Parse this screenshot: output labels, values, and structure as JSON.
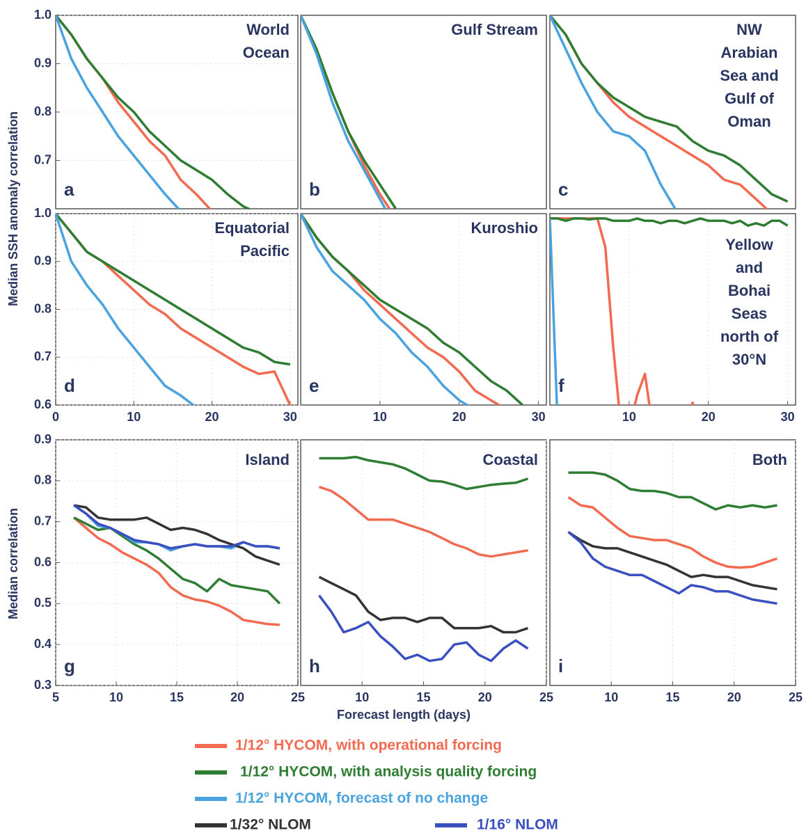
{
  "chart_data": [
    {
      "type": "line",
      "title": [
        "World",
        "Ocean"
      ],
      "label": "a",
      "ylabel": "Median SSH anomaly correlation",
      "x": [
        0,
        2,
        4,
        6,
        8,
        10,
        12,
        14,
        16,
        18,
        20,
        22,
        24,
        26,
        28,
        30
      ],
      "xlim": [
        0,
        31
      ],
      "ylim": [
        0.6,
        1.0
      ],
      "yticks": [
        {
          "value": 1,
          "label": "1.0"
        },
        0.9,
        0.8,
        0.7
      ],
      "series": [
        {
          "name": "1/12° HYCOM, with operational forcing",
          "color": "#f26a4f",
          "values": [
            1.0,
            0.96,
            0.91,
            0.87,
            0.82,
            0.78,
            0.74,
            0.71,
            0.66,
            0.63,
            0.595,
            null,
            null,
            null,
            null,
            null
          ]
        },
        {
          "name": "1/12° HYCOM, with analysis quality forcing",
          "color": "#2e7d32",
          "values": [
            1.0,
            0.96,
            0.91,
            0.87,
            0.83,
            0.8,
            0.76,
            0.73,
            0.7,
            0.68,
            0.66,
            0.63,
            0.605,
            0.59,
            null,
            null
          ]
        },
        {
          "name": "1/12° HYCOM, forecast of no change",
          "color": "#4aa3df",
          "values": [
            1.0,
            0.91,
            0.85,
            0.8,
            0.75,
            0.71,
            0.67,
            0.63,
            0.595,
            null,
            null,
            null,
            null,
            null,
            null,
            null
          ]
        }
      ]
    },
    {
      "type": "line",
      "title": [
        "Gulf Stream"
      ],
      "label": "b",
      "x": [
        0,
        2,
        4,
        6,
        8,
        10,
        12,
        14,
        16,
        18,
        20,
        22,
        24,
        26,
        28,
        30
      ],
      "xlim": [
        0,
        31
      ],
      "ylim": [
        0.6,
        1.0
      ],
      "series": [
        {
          "name": "1/12° HYCOM, with operational forcing",
          "color": "#f26a4f",
          "values": [
            1.0,
            0.93,
            0.84,
            0.76,
            0.69,
            0.63,
            0.58,
            null,
            null,
            null,
            null,
            null,
            null,
            null,
            null,
            null
          ]
        },
        {
          "name": "1/12° HYCOM, with analysis quality forcing",
          "color": "#2e7d32",
          "values": [
            1.0,
            0.93,
            0.84,
            0.76,
            0.7,
            0.65,
            0.6,
            null,
            null,
            null,
            null,
            null,
            null,
            null,
            null,
            null
          ]
        },
        {
          "name": "1/12° HYCOM, forecast of no change",
          "color": "#4aa3df",
          "values": [
            1.0,
            0.92,
            0.82,
            0.74,
            0.68,
            0.62,
            0.56,
            null,
            null,
            null,
            null,
            null,
            null,
            null,
            null,
            null
          ]
        }
      ]
    },
    {
      "type": "line",
      "title": [
        "NW",
        "Arabian",
        "Sea and",
        "Gulf of",
        "Oman"
      ],
      "label": "c",
      "x": [
        0,
        2,
        4,
        6,
        8,
        10,
        12,
        14,
        16,
        18,
        20,
        22,
        24,
        26,
        28,
        30
      ],
      "xlim": [
        0,
        31
      ],
      "ylim": [
        0.6,
        1.0
      ],
      "series": [
        {
          "name": "1/12° HYCOM, with operational forcing",
          "color": "#f26a4f",
          "values": [
            1.0,
            0.96,
            0.9,
            0.86,
            0.82,
            0.79,
            0.77,
            0.75,
            0.73,
            0.71,
            0.69,
            0.66,
            0.65,
            0.62,
            0.59,
            null
          ]
        },
        {
          "name": "1/12° HYCOM, with analysis quality forcing",
          "color": "#2e7d32",
          "values": [
            1.0,
            0.96,
            0.9,
            0.86,
            0.83,
            0.81,
            0.79,
            0.78,
            0.77,
            0.74,
            0.72,
            0.71,
            0.69,
            0.66,
            0.63,
            0.615
          ]
        },
        {
          "name": "1/12° HYCOM, forecast of no change",
          "color": "#4aa3df",
          "values": [
            1.0,
            0.93,
            0.86,
            0.8,
            0.76,
            0.75,
            0.72,
            0.65,
            0.595,
            null,
            null,
            null,
            null,
            null,
            null,
            null
          ]
        }
      ]
    },
    {
      "type": "line",
      "title": [
        "Equatorial",
        "Pacific"
      ],
      "label": "d",
      "x": [
        0,
        2,
        4,
        6,
        8,
        10,
        12,
        14,
        16,
        18,
        20,
        22,
        24,
        26,
        28,
        30
      ],
      "xlim": [
        0,
        31
      ],
      "ylim": [
        0.6,
        1.0
      ],
      "xticks": [
        0,
        10,
        20,
        30
      ],
      "yticks": [
        {
          "value": 1,
          "label": "1.0"
        },
        0.9,
        0.8,
        0.7,
        0.6
      ],
      "series": [
        {
          "name": "1/12° HYCOM, with operational forcing",
          "color": "#f26a4f",
          "values": [
            1.0,
            0.96,
            0.92,
            0.9,
            0.87,
            0.84,
            0.81,
            0.79,
            0.76,
            0.74,
            0.72,
            0.7,
            0.68,
            0.665,
            0.67,
            0.6
          ]
        },
        {
          "name": "1/12° HYCOM, with analysis quality forcing",
          "color": "#2e7d32",
          "values": [
            1.0,
            0.96,
            0.92,
            0.9,
            0.88,
            0.86,
            0.84,
            0.82,
            0.8,
            0.78,
            0.76,
            0.74,
            0.72,
            0.71,
            0.69,
            0.685
          ]
        },
        {
          "name": "1/12° HYCOM, forecast of no change",
          "color": "#4aa3df",
          "values": [
            1.0,
            0.9,
            0.85,
            0.81,
            0.76,
            0.72,
            0.68,
            0.64,
            0.62,
            0.595,
            null,
            null,
            null,
            null,
            null,
            null
          ]
        }
      ]
    },
    {
      "type": "line",
      "title": [
        "Kuroshio"
      ],
      "label": "e",
      "x": [
        0,
        2,
        4,
        6,
        8,
        10,
        12,
        14,
        16,
        18,
        20,
        22,
        24,
        26,
        28,
        30
      ],
      "xlim": [
        0,
        31
      ],
      "ylim": [
        0.6,
        1.0
      ],
      "xticks": [
        10,
        20,
        30
      ],
      "series": [
        {
          "name": "1/12° HYCOM, with operational forcing",
          "color": "#f26a4f",
          "values": [
            1.0,
            0.95,
            0.91,
            0.88,
            0.84,
            0.81,
            0.78,
            0.75,
            0.72,
            0.7,
            0.67,
            0.63,
            0.61,
            0.59,
            null,
            null
          ]
        },
        {
          "name": "1/12° HYCOM, with analysis quality forcing",
          "color": "#2e7d32",
          "values": [
            1.0,
            0.95,
            0.91,
            0.88,
            0.85,
            0.82,
            0.8,
            0.78,
            0.76,
            0.73,
            0.71,
            0.68,
            0.65,
            0.63,
            0.6,
            null
          ]
        },
        {
          "name": "1/12° HYCOM, forecast of no change",
          "color": "#4aa3df",
          "values": [
            1.0,
            0.93,
            0.88,
            0.85,
            0.82,
            0.78,
            0.75,
            0.71,
            0.68,
            0.64,
            0.61,
            0.59,
            null,
            null,
            null,
            null
          ]
        }
      ]
    },
    {
      "type": "line",
      "title": [
        "Yellow",
        "and",
        "Bohai",
        "Seas",
        "north of",
        "30°N"
      ],
      "label": "f",
      "x": [
        0,
        1,
        2,
        3,
        4,
        5,
        6,
        7,
        8,
        9,
        10,
        11,
        12,
        13,
        14,
        15,
        16,
        17,
        18,
        19,
        20,
        21,
        22,
        23,
        24,
        25,
        26,
        27,
        28,
        29,
        30
      ],
      "xlim": [
        0,
        31
      ],
      "ylim": [
        0.6,
        1.0
      ],
      "xticks": [
        10,
        20,
        30
      ],
      "series": [
        {
          "name": "1/12° HYCOM, with operational forcing",
          "color": "#f26a4f",
          "values": [
            0.99,
            0.99,
            0.99,
            0.99,
            0.99,
            0.99,
            0.99,
            0.93,
            0.72,
            0.55,
            0.55,
            0.62,
            0.665,
            0.55,
            null,
            null,
            null,
            0.55,
            0.605,
            0.55,
            null,
            null,
            null,
            null,
            null,
            null,
            null,
            null,
            null,
            null,
            null
          ]
        },
        {
          "name": "1/12° HYCOM, with analysis quality forcing",
          "color": "#2e7d32",
          "values": [
            0.99,
            0.99,
            0.985,
            0.99,
            0.99,
            0.988,
            0.99,
            0.99,
            0.985,
            0.985,
            0.985,
            0.99,
            0.985,
            0.985,
            0.98,
            0.985,
            0.985,
            0.98,
            0.985,
            0.99,
            0.985,
            0.985,
            0.985,
            0.98,
            0.985,
            0.975,
            0.98,
            0.975,
            0.985,
            0.985,
            0.975
          ]
        },
        {
          "name": "1/12° HYCOM, forecast of no change",
          "color": "#4aa3df",
          "values": [
            0.99,
            0.55,
            null,
            null,
            null,
            null,
            null,
            null,
            null,
            null,
            null,
            null,
            null,
            null,
            null,
            null,
            null,
            null,
            null,
            null,
            null,
            null,
            null,
            null,
            null,
            null,
            null,
            null,
            null,
            null,
            null
          ]
        }
      ]
    },
    {
      "type": "line",
      "title": [
        "Island"
      ],
      "label": "g",
      "ylabel": "Median correlation",
      "x": [
        6.5,
        7.5,
        8.5,
        9.5,
        10.5,
        11.5,
        12.5,
        13.5,
        14.5,
        15.5,
        16.5,
        17.5,
        18.5,
        19.5,
        20.5,
        21.5,
        22.5,
        23.5
      ],
      "xlim": [
        5,
        25
      ],
      "ylim": [
        0.3,
        0.9
      ],
      "xticks": [
        5,
        10,
        15,
        20,
        25
      ],
      "yticks": [
        0.9,
        0.8,
        0.7,
        0.6,
        0.5,
        0.4,
        0.3
      ],
      "series": [
        {
          "name": "1/12° HYCOM, with operational forcing",
          "color": "#f26a4f",
          "values": [
            0.71,
            0.685,
            0.66,
            0.645,
            0.625,
            0.61,
            0.595,
            0.575,
            0.54,
            0.52,
            0.51,
            0.505,
            0.495,
            0.48,
            0.46,
            0.455,
            0.45,
            0.448
          ]
        },
        {
          "name": "1/12° HYCOM, with analysis quality forcing",
          "color": "#2e7d32",
          "values": [
            0.71,
            0.695,
            0.68,
            0.685,
            0.665,
            0.645,
            0.63,
            0.61,
            0.585,
            0.56,
            0.55,
            0.53,
            0.56,
            0.545,
            0.54,
            0.535,
            0.53,
            0.5
          ]
        },
        {
          "name": "1/12° HYCOM, forecast of no change",
          "color": "#4aa3df",
          "values": [
            0.74,
            0.72,
            0.69,
            0.685,
            0.67,
            0.65,
            0.65,
            0.645,
            0.63,
            0.64,
            0.645,
            0.64,
            0.64,
            0.635,
            0.65,
            0.64,
            0.64,
            0.635
          ]
        },
        {
          "name": "1/32° NLOM",
          "color": "#333333",
          "values": [
            0.74,
            0.735,
            0.71,
            0.705,
            0.705,
            0.705,
            0.71,
            0.695,
            0.68,
            0.685,
            0.68,
            0.67,
            0.655,
            0.645,
            0.635,
            0.615,
            0.605,
            0.595
          ]
        },
        {
          "name": "1/16° NLOM",
          "color": "#3a4fc0",
          "values": [
            0.74,
            0.72,
            0.695,
            0.685,
            0.67,
            0.655,
            0.65,
            0.645,
            0.635,
            0.64,
            0.645,
            0.64,
            0.64,
            0.64,
            0.65,
            0.64,
            0.64,
            0.635
          ]
        }
      ]
    },
    {
      "type": "line",
      "title": [
        "Coastal"
      ],
      "label": "h",
      "xlabel": "Forecast length (days)",
      "x": [
        6.5,
        7.5,
        8.5,
        9.5,
        10.5,
        11.5,
        12.5,
        13.5,
        14.5,
        15.5,
        16.5,
        17.5,
        18.5,
        19.5,
        20.5,
        21.5,
        22.5,
        23.5
      ],
      "xlim": [
        5,
        25
      ],
      "ylim": [
        0.3,
        0.9
      ],
      "xticks": [
        10,
        15,
        20,
        25
      ],
      "series": [
        {
          "name": "1/12° HYCOM, with operational forcing",
          "color": "#f26a4f",
          "values": [
            0.785,
            0.775,
            0.755,
            0.73,
            0.705,
            0.705,
            0.705,
            0.695,
            0.685,
            0.675,
            0.66,
            0.645,
            0.635,
            0.62,
            0.615,
            0.62,
            0.625,
            0.63
          ]
        },
        {
          "name": "1/12° HYCOM, with analysis quality forcing",
          "color": "#2e7d32",
          "values": [
            0.855,
            0.855,
            0.855,
            0.858,
            0.85,
            0.845,
            0.84,
            0.83,
            0.815,
            0.8,
            0.798,
            0.79,
            0.78,
            0.785,
            0.79,
            0.793,
            0.795,
            0.805
          ]
        },
        {
          "name": "1/32° NLOM",
          "color": "#333333",
          "values": [
            0.565,
            0.55,
            0.535,
            0.52,
            0.48,
            0.46,
            0.465,
            0.465,
            0.455,
            0.465,
            0.465,
            0.44,
            0.44,
            0.44,
            0.445,
            0.43,
            0.43,
            0.44
          ]
        },
        {
          "name": "1/16° NLOM",
          "color": "#3a4fc0",
          "values": [
            0.52,
            0.48,
            0.43,
            0.44,
            0.455,
            0.42,
            0.395,
            0.365,
            0.375,
            0.36,
            0.365,
            0.4,
            0.405,
            0.375,
            0.36,
            0.39,
            0.41,
            0.39
          ]
        }
      ]
    },
    {
      "type": "line",
      "title": [
        "Both"
      ],
      "label": "i",
      "x": [
        6.5,
        7.5,
        8.5,
        9.5,
        10.5,
        11.5,
        12.5,
        13.5,
        14.5,
        15.5,
        16.5,
        17.5,
        18.5,
        19.5,
        20.5,
        21.5,
        22.5,
        23.5
      ],
      "xlim": [
        5,
        25
      ],
      "ylim": [
        0.3,
        0.9
      ],
      "xticks": [
        10,
        15,
        20,
        25
      ],
      "series": [
        {
          "name": "1/12° HYCOM, with operational forcing",
          "color": "#f26a4f",
          "values": [
            0.76,
            0.74,
            0.735,
            0.71,
            0.685,
            0.665,
            0.66,
            0.655,
            0.655,
            0.645,
            0.635,
            0.615,
            0.6,
            0.59,
            0.588,
            0.59,
            0.6,
            0.61
          ]
        },
        {
          "name": "1/12° HYCOM, with analysis quality forcing",
          "color": "#2e7d32",
          "values": [
            0.82,
            0.82,
            0.82,
            0.815,
            0.8,
            0.78,
            0.775,
            0.775,
            0.77,
            0.76,
            0.76,
            0.745,
            0.73,
            0.74,
            0.735,
            0.74,
            0.735,
            0.74
          ]
        },
        {
          "name": "1/32° NLOM",
          "color": "#333333",
          "values": [
            0.675,
            0.655,
            0.64,
            0.635,
            0.635,
            0.625,
            0.615,
            0.605,
            0.595,
            0.58,
            0.565,
            0.57,
            0.565,
            0.565,
            0.555,
            0.545,
            0.54,
            0.535
          ]
        },
        {
          "name": "1/16° NLOM",
          "color": "#3a4fc0",
          "values": [
            0.675,
            0.65,
            0.61,
            0.59,
            0.58,
            0.57,
            0.57,
            0.555,
            0.54,
            0.525,
            0.545,
            0.54,
            0.53,
            0.53,
            0.52,
            0.51,
            0.505,
            0.5
          ]
        }
      ]
    }
  ]
}
